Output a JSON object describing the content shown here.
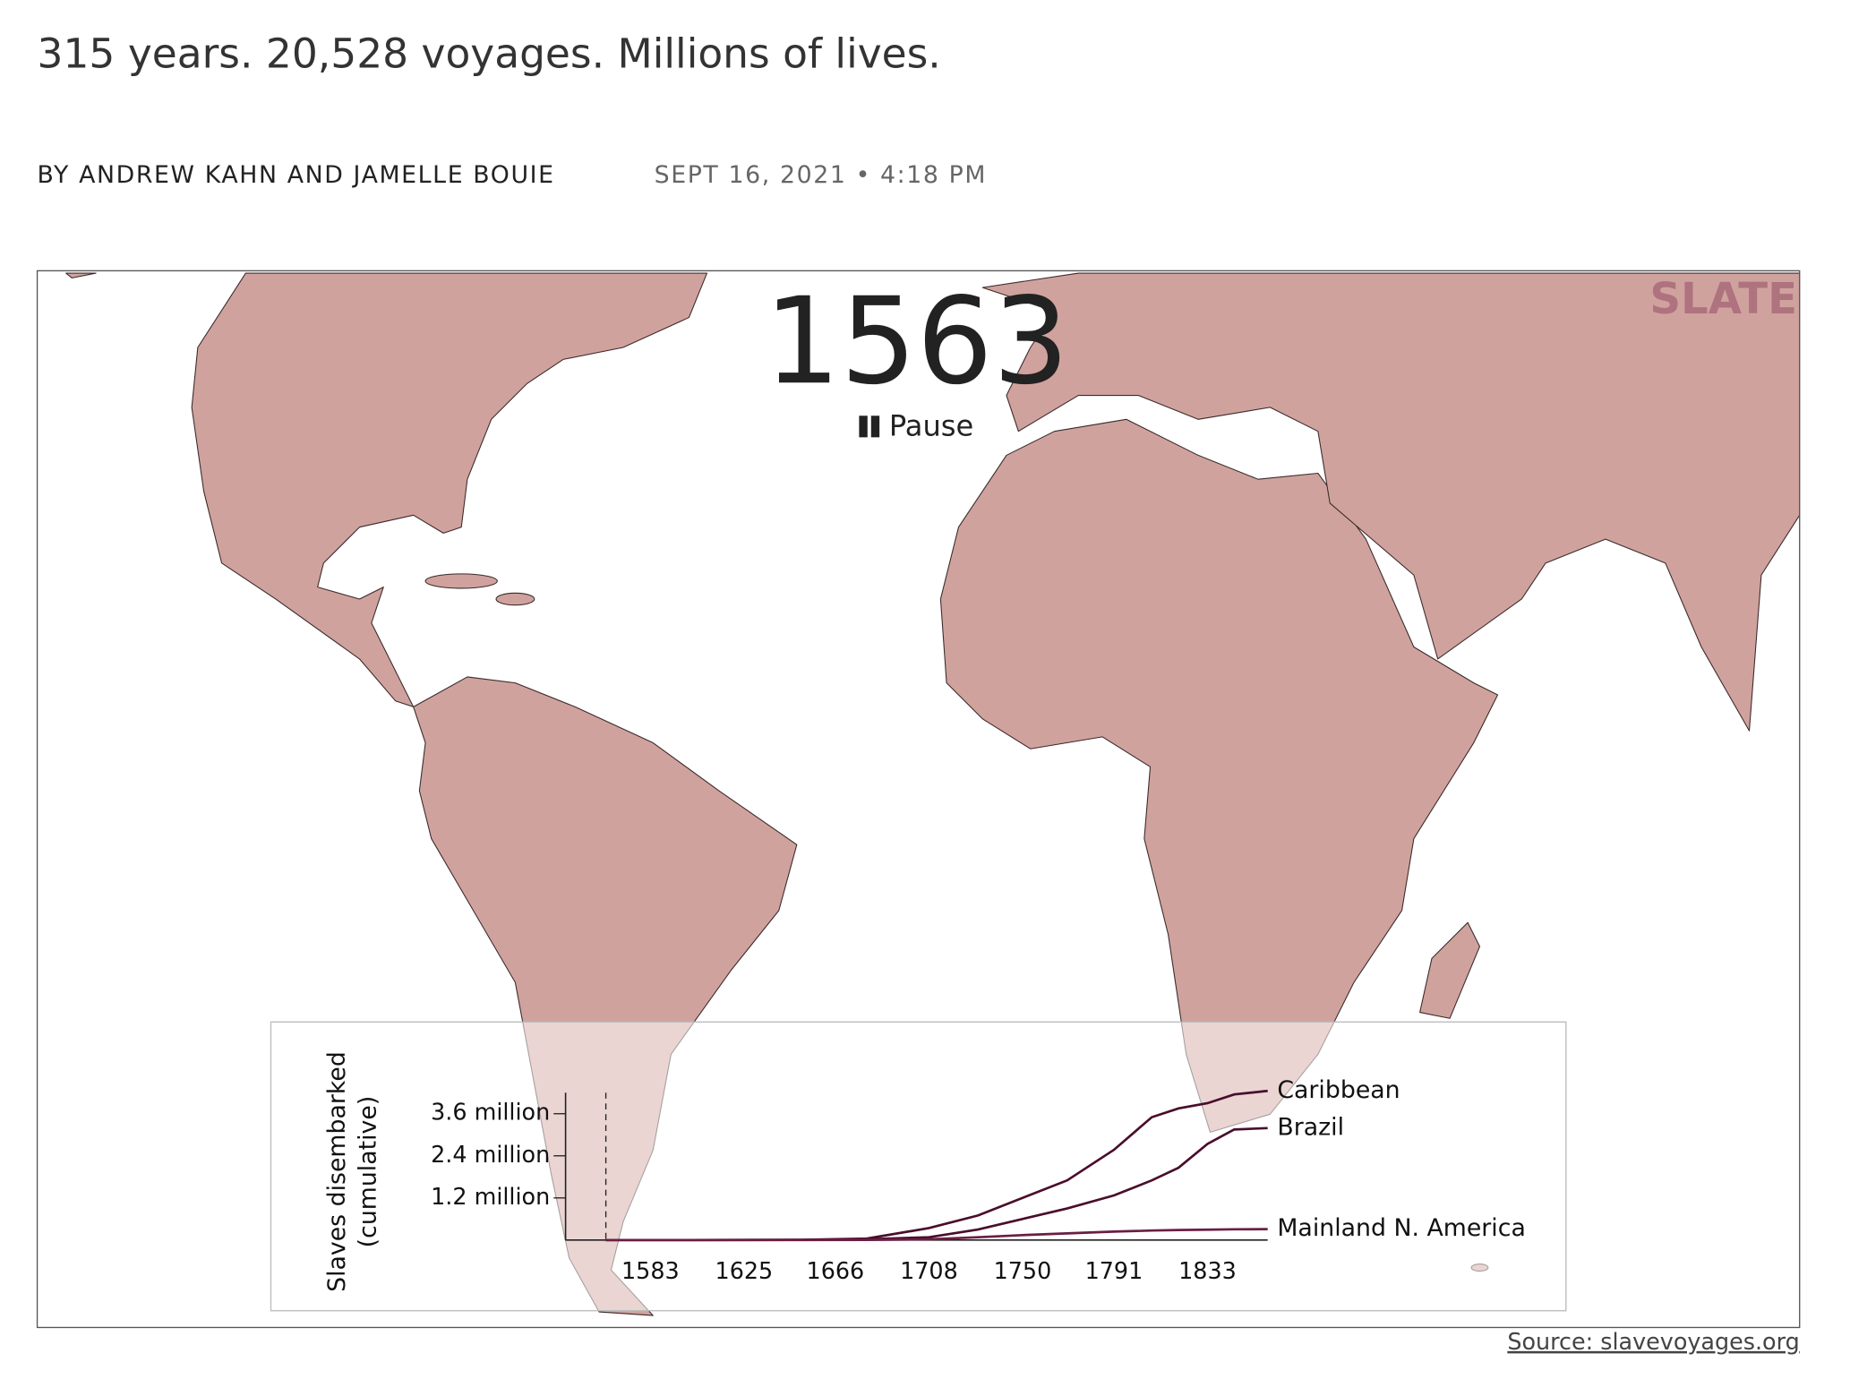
{
  "header": {
    "title": "315 years. 20,528 voyages. Millions of lives.",
    "byline": "BY ANDREW KAHN AND JAMELLE BOUIE",
    "dateline": "SEPT 16, 2021 • 4:18 PM"
  },
  "map": {
    "control": "Pause",
    "logo": "SLATE",
    "source": "Source: slavevoyages.org"
  },
  "chart_data": {
    "type": "line",
    "ylabel": [
      "Slaves disembarked",
      "(cumulative)"
    ],
    "current_year": 1563,
    "x": [
      1563,
      1600,
      1650,
      1680,
      1708,
      1730,
      1750,
      1770,
      1791,
      1808,
      1820,
      1833,
      1845,
      1860
    ],
    "series": [
      {
        "name": "Caribbean",
        "color": "#4a0d2c",
        "values": [
          0,
          0,
          5000,
          40000,
          340000,
          700000,
          1200000,
          1700000,
          2570000,
          3500000,
          3750000,
          3900000,
          4150000,
          4250000
        ]
      },
      {
        "name": "Brazil",
        "color": "#4a0d2c",
        "values": [
          0,
          0,
          5000,
          20000,
          80000,
          300000,
          600000,
          900000,
          1270000,
          1700000,
          2060000,
          2740000,
          3150000,
          3190000
        ]
      },
      {
        "name": "Mainland N. America",
        "color": "#6a1e44",
        "values": [
          0,
          0,
          0,
          5000,
          20000,
          80000,
          140000,
          190000,
          240000,
          270000,
          285000,
          295000,
          305000,
          310000
        ]
      }
    ],
    "xlim": [
      1546,
      1860
    ],
    "xticks": [
      1583,
      1625,
      1666,
      1708,
      1750,
      1791,
      1833
    ],
    "ylim": [
      0,
      4200000
    ],
    "yticks": [
      {
        "value": 1200000,
        "label": "1.2 million"
      },
      {
        "value": 2400000,
        "label": "2.4 million"
      },
      {
        "value": 3600000,
        "label": "3.6 million"
      }
    ]
  }
}
